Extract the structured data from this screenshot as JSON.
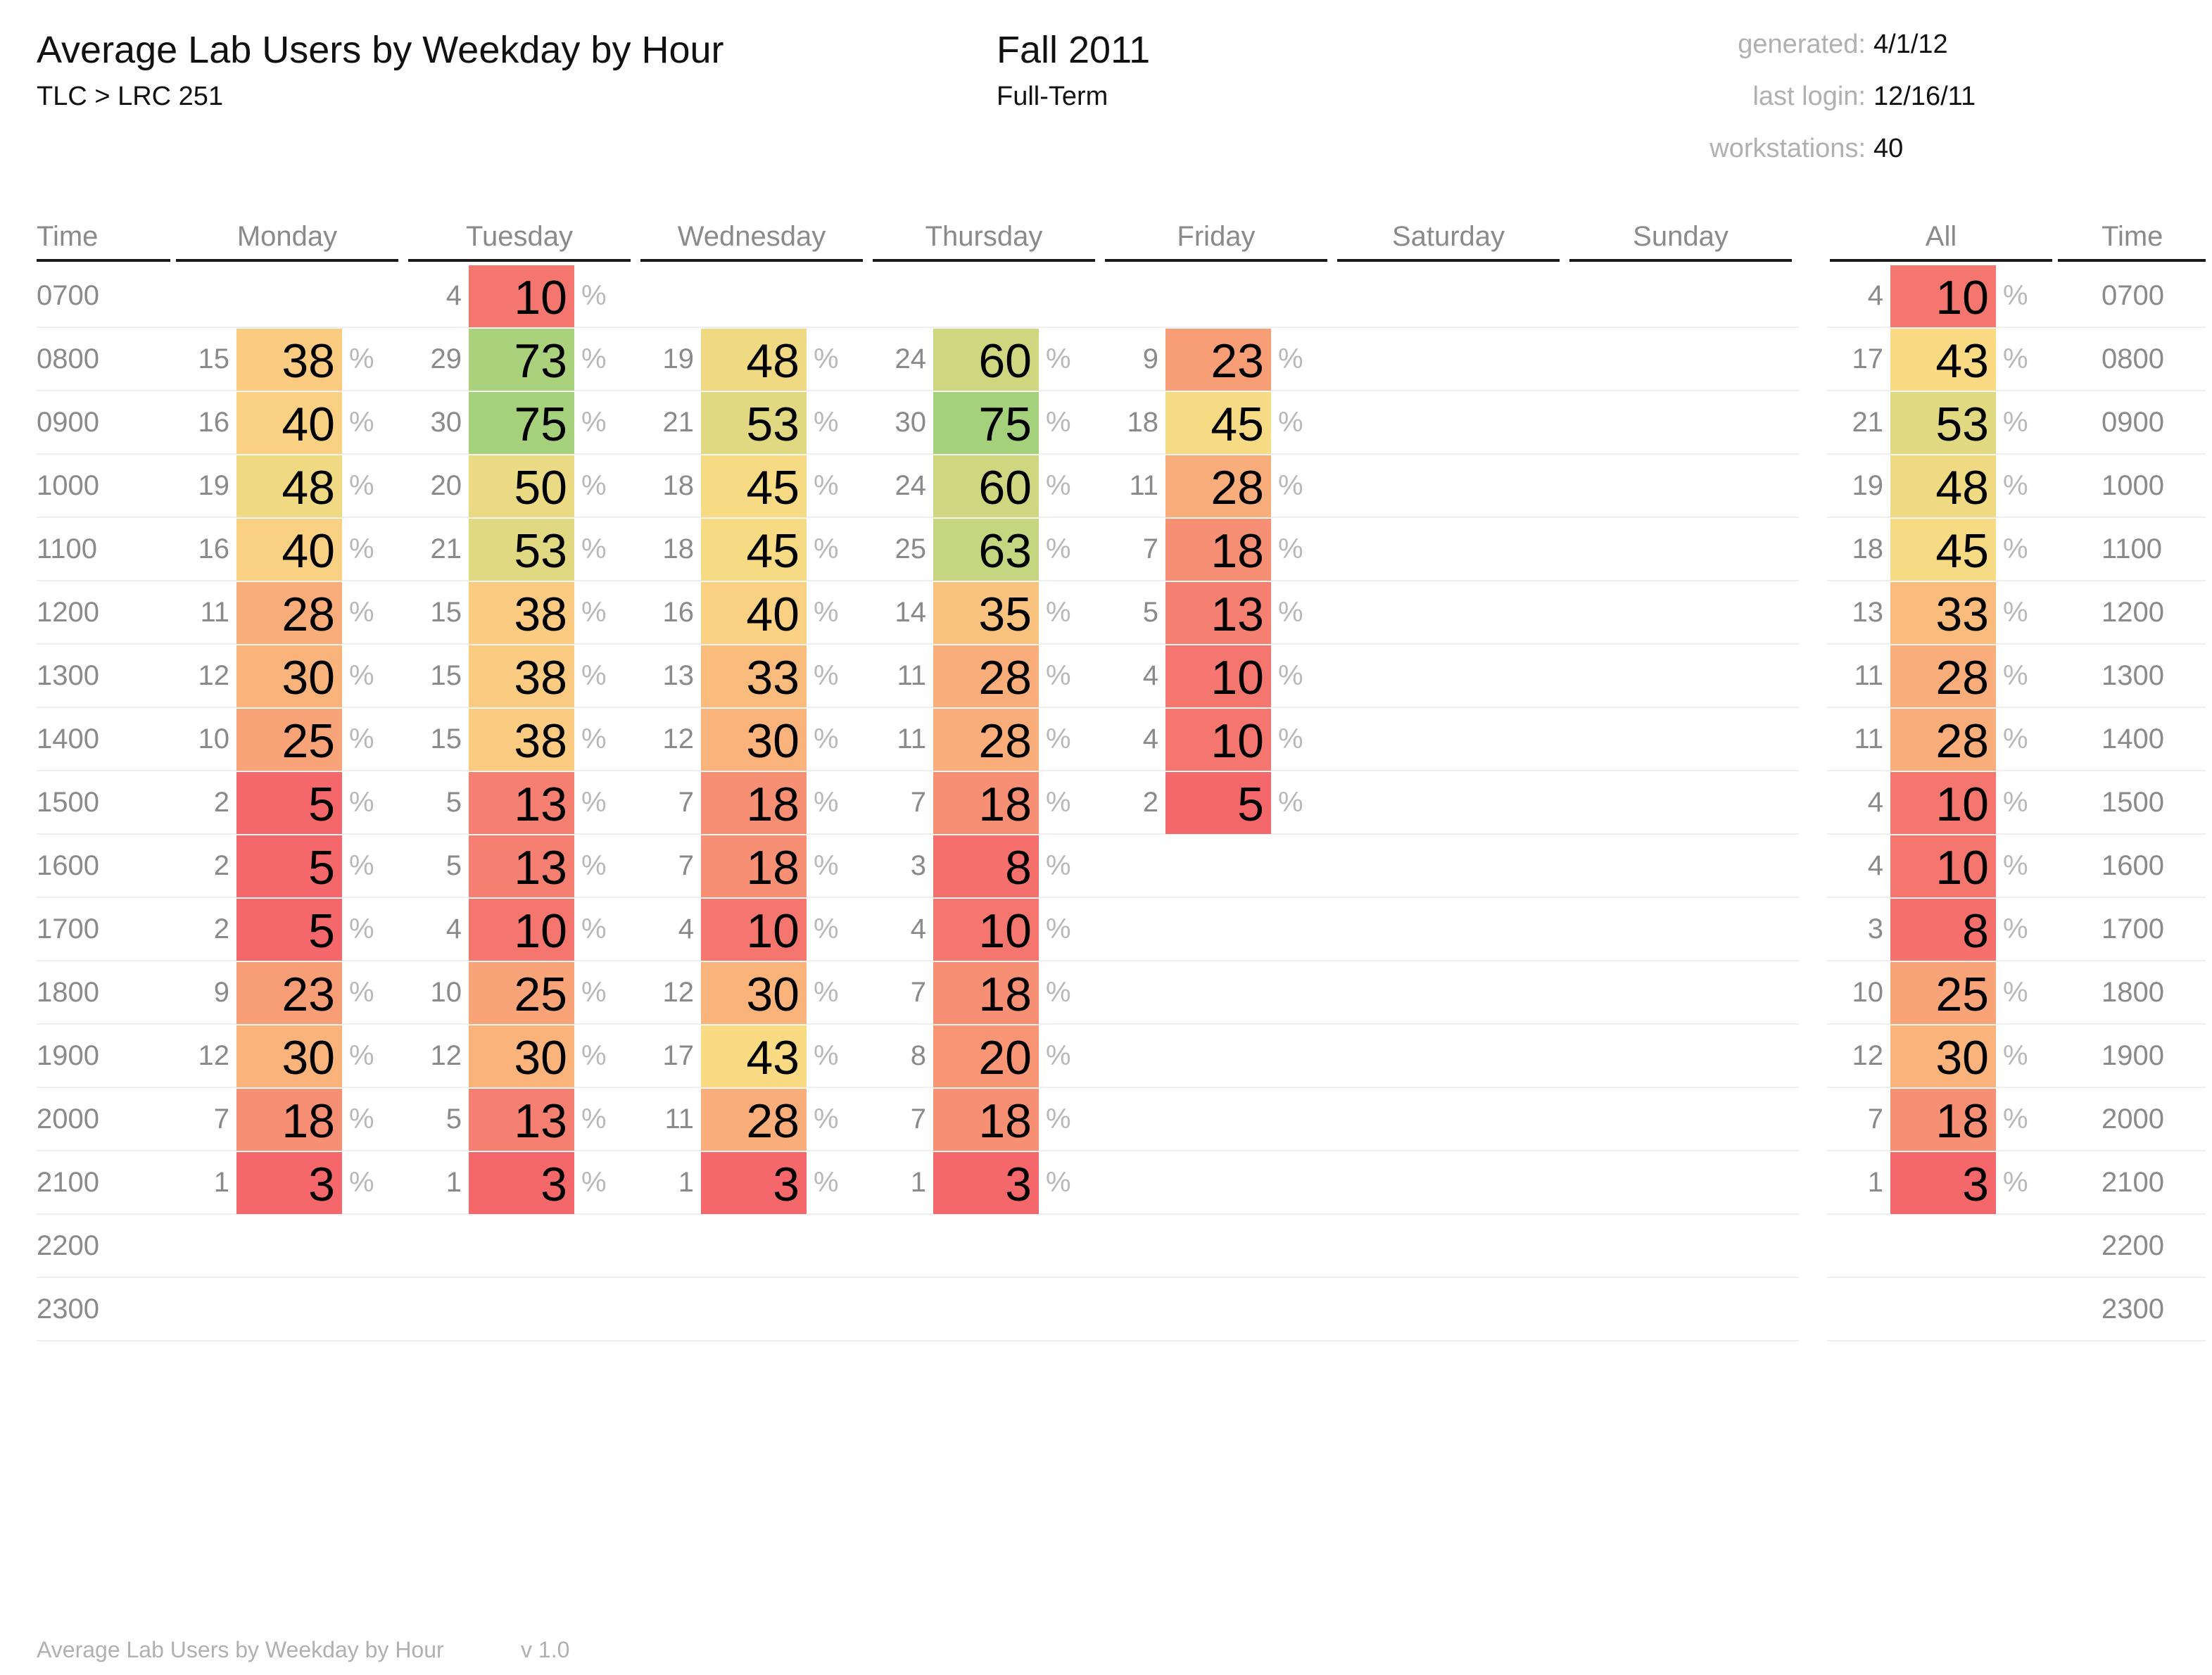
{
  "header": {
    "title": "Average Lab Users by Weekday by Hour",
    "subtitle": "TLC > LRC 251",
    "term": "Fall 2011",
    "term_type": "Full-Term",
    "meta": [
      {
        "label": "generated:",
        "value": "4/1/12"
      },
      {
        "label": "last login:",
        "value": "12/16/11"
      },
      {
        "label": "workstations:",
        "value": "40"
      }
    ]
  },
  "footer": {
    "title": "Average Lab Users by Weekday by Hour",
    "version": "v 1.0"
  },
  "chart_data": {
    "type": "heatmap",
    "time_header": "Time",
    "percent_sign": "%",
    "columns": [
      "Monday",
      "Tuesday",
      "Wednesday",
      "Thursday",
      "Friday",
      "Saturday",
      "Sunday",
      "All"
    ],
    "hours": [
      "0700",
      "0800",
      "0900",
      "1000",
      "1100",
      "1200",
      "1300",
      "1400",
      "1500",
      "1600",
      "1700",
      "1800",
      "1900",
      "2000",
      "2100",
      "2200",
      "2300"
    ],
    "cells": [
      [
        null,
        {
          "count": 4,
          "percent": 10
        },
        null,
        null,
        null,
        null,
        null,
        {
          "count": 4,
          "percent": 10
        }
      ],
      [
        {
          "count": 15,
          "percent": 38
        },
        {
          "count": 29,
          "percent": 73
        },
        {
          "count": 19,
          "percent": 48
        },
        {
          "count": 24,
          "percent": 60
        },
        {
          "count": 9,
          "percent": 23
        },
        null,
        null,
        {
          "count": 17,
          "percent": 43
        }
      ],
      [
        {
          "count": 16,
          "percent": 40
        },
        {
          "count": 30,
          "percent": 75
        },
        {
          "count": 21,
          "percent": 53
        },
        {
          "count": 30,
          "percent": 75
        },
        {
          "count": 18,
          "percent": 45
        },
        null,
        null,
        {
          "count": 21,
          "percent": 53
        }
      ],
      [
        {
          "count": 19,
          "percent": 48
        },
        {
          "count": 20,
          "percent": 50
        },
        {
          "count": 18,
          "percent": 45
        },
        {
          "count": 24,
          "percent": 60
        },
        {
          "count": 11,
          "percent": 28
        },
        null,
        null,
        {
          "count": 19,
          "percent": 48
        }
      ],
      [
        {
          "count": 16,
          "percent": 40
        },
        {
          "count": 21,
          "percent": 53
        },
        {
          "count": 18,
          "percent": 45
        },
        {
          "count": 25,
          "percent": 63
        },
        {
          "count": 7,
          "percent": 18
        },
        null,
        null,
        {
          "count": 18,
          "percent": 45
        }
      ],
      [
        {
          "count": 11,
          "percent": 28
        },
        {
          "count": 15,
          "percent": 38
        },
        {
          "count": 16,
          "percent": 40
        },
        {
          "count": 14,
          "percent": 35
        },
        {
          "count": 5,
          "percent": 13
        },
        null,
        null,
        {
          "count": 13,
          "percent": 33
        }
      ],
      [
        {
          "count": 12,
          "percent": 30
        },
        {
          "count": 15,
          "percent": 38
        },
        {
          "count": 13,
          "percent": 33
        },
        {
          "count": 11,
          "percent": 28
        },
        {
          "count": 4,
          "percent": 10
        },
        null,
        null,
        {
          "count": 11,
          "percent": 28
        }
      ],
      [
        {
          "count": 10,
          "percent": 25
        },
        {
          "count": 15,
          "percent": 38
        },
        {
          "count": 12,
          "percent": 30
        },
        {
          "count": 11,
          "percent": 28
        },
        {
          "count": 4,
          "percent": 10
        },
        null,
        null,
        {
          "count": 11,
          "percent": 28
        }
      ],
      [
        {
          "count": 2,
          "percent": 5
        },
        {
          "count": 5,
          "percent": 13
        },
        {
          "count": 7,
          "percent": 18
        },
        {
          "count": 7,
          "percent": 18
        },
        {
          "count": 2,
          "percent": 5
        },
        null,
        null,
        {
          "count": 4,
          "percent": 10
        }
      ],
      [
        {
          "count": 2,
          "percent": 5
        },
        {
          "count": 5,
          "percent": 13
        },
        {
          "count": 7,
          "percent": 18
        },
        {
          "count": 3,
          "percent": 8
        },
        null,
        null,
        null,
        {
          "count": 4,
          "percent": 10
        }
      ],
      [
        {
          "count": 2,
          "percent": 5
        },
        {
          "count": 4,
          "percent": 10
        },
        {
          "count": 4,
          "percent": 10
        },
        {
          "count": 4,
          "percent": 10
        },
        null,
        null,
        null,
        {
          "count": 3,
          "percent": 8
        }
      ],
      [
        {
          "count": 9,
          "percent": 23
        },
        {
          "count": 10,
          "percent": 25
        },
        {
          "count": 12,
          "percent": 30
        },
        {
          "count": 7,
          "percent": 18
        },
        null,
        null,
        null,
        {
          "count": 10,
          "percent": 25
        }
      ],
      [
        {
          "count": 12,
          "percent": 30
        },
        {
          "count": 12,
          "percent": 30
        },
        {
          "count": 17,
          "percent": 43
        },
        {
          "count": 8,
          "percent": 20
        },
        null,
        null,
        null,
        {
          "count": 12,
          "percent": 30
        }
      ],
      [
        {
          "count": 7,
          "percent": 18
        },
        {
          "count": 5,
          "percent": 13
        },
        {
          "count": 11,
          "percent": 28
        },
        {
          "count": 7,
          "percent": 18
        },
        null,
        null,
        null,
        {
          "count": 7,
          "percent": 18
        }
      ],
      [
        {
          "count": 1,
          "percent": 3
        },
        {
          "count": 1,
          "percent": 3
        },
        {
          "count": 1,
          "percent": 3
        },
        {
          "count": 1,
          "percent": 3
        },
        null,
        null,
        null,
        {
          "count": 1,
          "percent": 3
        }
      ],
      [
        null,
        null,
        null,
        null,
        null,
        null,
        null,
        null
      ],
      [
        null,
        null,
        null,
        null,
        null,
        null,
        null,
        null
      ]
    ],
    "color_scale": {
      "low": "#f4676b",
      "mid": "#fbdc84",
      "high": "#a5d17d"
    }
  }
}
